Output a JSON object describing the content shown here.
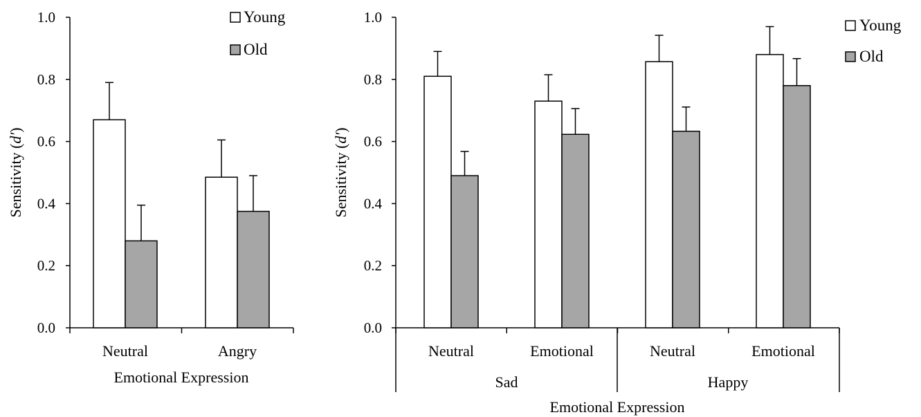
{
  "colors": {
    "young": "#ffffff",
    "old": "#a6a6a6",
    "stroke": "#000000"
  },
  "chart_data": [
    {
      "type": "bar",
      "ylabel": "Sensitivity (d′)",
      "ylabel_prefix": "Sensitivity (",
      "ylabel_italic": "d′",
      "ylabel_suffix": ")",
      "xlabel": "Emotional Expression",
      "ylim": [
        0,
        1.0
      ],
      "yticks": [
        "0.0",
        "0.2",
        "0.4",
        "0.6",
        "0.8",
        "1.0"
      ],
      "categories": [
        "Neutral",
        "Angry"
      ],
      "series": [
        {
          "name": "Young",
          "values": [
            0.67,
            0.485
          ],
          "errors": [
            0.12,
            0.12
          ]
        },
        {
          "name": "Old",
          "values": [
            0.28,
            0.375
          ],
          "errors": [
            0.115,
            0.115
          ]
        }
      ],
      "legend": [
        "Young",
        "Old"
      ],
      "grid": false,
      "legend_position": "top-right"
    },
    {
      "type": "bar",
      "ylabel": "Sensitivity (d′)",
      "ylabel_prefix": "Sensitivity (",
      "ylabel_italic": "d′",
      "ylabel_suffix": ")",
      "xlabel": "Emotional Expression",
      "ylim": [
        0,
        1.0
      ],
      "yticks": [
        "0.0",
        "0.2",
        "0.4",
        "0.6",
        "0.8",
        "1.0"
      ],
      "categories": [
        "Neutral",
        "Emotional",
        "Neutral",
        "Emotional"
      ],
      "groups": [
        "Sad",
        "Happy"
      ],
      "series": [
        {
          "name": "Young",
          "values": [
            0.81,
            0.73,
            0.857,
            0.88
          ],
          "errors": [
            0.08,
            0.085,
            0.085,
            0.09
          ]
        },
        {
          "name": "Old",
          "values": [
            0.49,
            0.623,
            0.633,
            0.78
          ],
          "errors": [
            0.078,
            0.083,
            0.078,
            0.087
          ]
        }
      ],
      "legend": [
        "Young",
        "Old"
      ],
      "grid": false,
      "legend_position": "top-right"
    }
  ]
}
